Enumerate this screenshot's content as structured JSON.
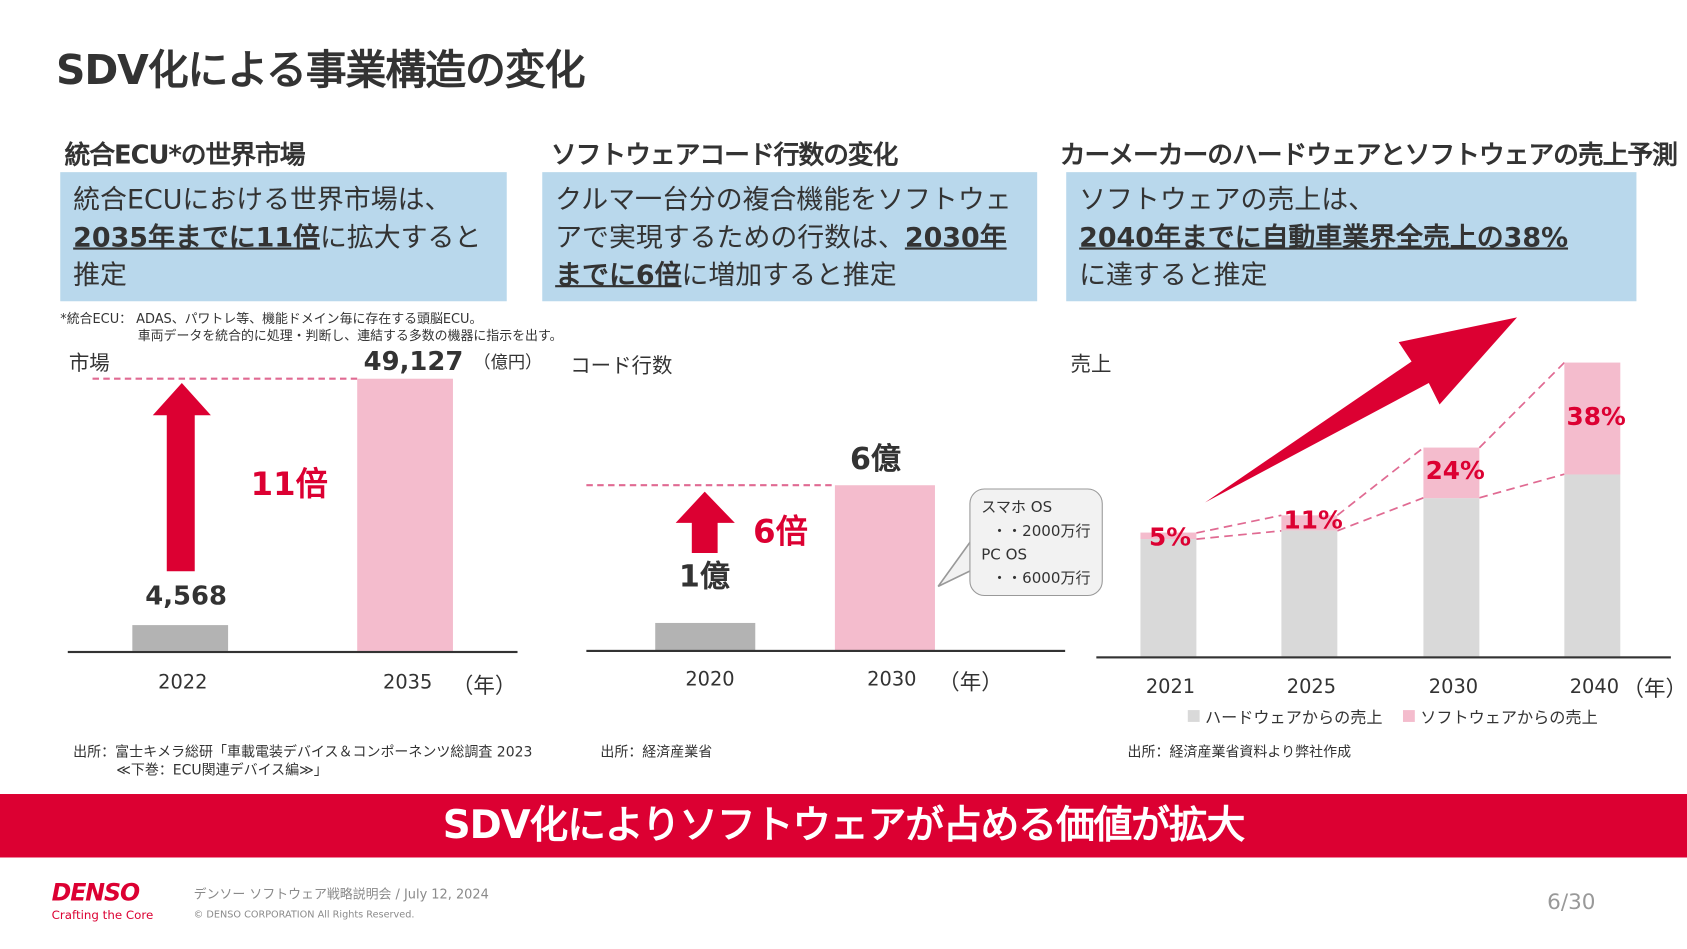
{
  "title": "SDV化による事業構造の変化",
  "sections": [
    {
      "heading": "統合ECU*の世界市場",
      "box_pre": "統合ECUにおける世界市場は、",
      "box_em": "2035年までに11倍",
      "box_post": "に拡大すると推定"
    },
    {
      "heading": "ソフトウェアコード行数の変化",
      "box_pre": "クルマ一台分の複合機能をソフトウェアで実現するための行数は、",
      "box_em": "2030年までに6倍",
      "box_post": "に増加すると推定"
    },
    {
      "heading": "カーメーカーのハードウェアとソフトウェアの売上予測",
      "box_pre": "ソフトウェアの売上は、",
      "box_em": "2040年までに自動車業界全売上の38%",
      "box_post": "に達すると推定"
    }
  ],
  "footnote": {
    "line1": "*統合ECU： ADAS、パワトレ等、機能ドメイン毎に存在する頭脳ECU。",
    "line2": "車両データを統合的に処理・判断し、連結する多数の機器に指示を出す。"
  },
  "chart_data": [
    {
      "type": "bar",
      "title": "統合ECU*の世界市場",
      "ylabel": "市場",
      "unit": "（億円）",
      "categories": [
        "2022",
        "2035"
      ],
      "values": [
        4568,
        49127
      ],
      "value_labels": [
        "4,568",
        "49,127"
      ],
      "x_unit": "（年）",
      "growth_label": "11倍",
      "ylim": [
        0,
        49127
      ]
    },
    {
      "type": "bar",
      "title": "ソフトウェアコード行数の変化",
      "ylabel": "コード行数",
      "categories": [
        "2020",
        "2030"
      ],
      "values": [
        1,
        6
      ],
      "value_labels": [
        "1億",
        "6億"
      ],
      "x_unit": "（年）",
      "growth_label": "6倍",
      "ylim": [
        0,
        6
      ],
      "callout": {
        "l1": "スマホ OS",
        "l2": "・・2000万行",
        "l3": "PC OS",
        "l4": "・・6000万行"
      }
    },
    {
      "type": "bar",
      "stacked": true,
      "title": "カーメーカーのハードウェアとソフトウェアの売上予測",
      "ylabel": "売上",
      "categories": [
        "2021",
        "2025",
        "2030",
        "2040"
      ],
      "software_share_pct": [
        5,
        11,
        24,
        38
      ],
      "share_labels": [
        "5%",
        "11%",
        "24%",
        "38%"
      ],
      "relative_total_est": [
        42,
        48,
        71,
        100
      ],
      "x_unit": "（年）",
      "legend": [
        {
          "name": "ハードウェアからの売上",
          "color": "#d9d9d9"
        },
        {
          "name": "ソフトウェアからの売上",
          "color": "#f4bccd"
        }
      ],
      "legend_position": "bottom"
    }
  ],
  "sources": [
    "出所：富士キメラ総研「車載電装デバイス＆コンポーネンツ総調査 2023",
    "≪下巻：ECU関連デバイス編≫」",
    "出所：経済産業省",
    "出所：経済産業省資料より弊社作成"
  ],
  "banner": "SDV化によりソフトウェアが占める価値が拡大",
  "footer": {
    "logo": "DENSO",
    "tagline": "Crafting the Core",
    "event": "デンソー ソフトウェア戦略説明会 / July 12, 2024",
    "copyright": "© DENSO CORPORATION All Rights Reserved.",
    "page": "6/30"
  },
  "colors": {
    "accent": "#dc0032",
    "box": "#b9d8ec",
    "pink": "#f4bccd",
    "gray": "#b3b3b3",
    "lightgray": "#d9d9d9"
  }
}
